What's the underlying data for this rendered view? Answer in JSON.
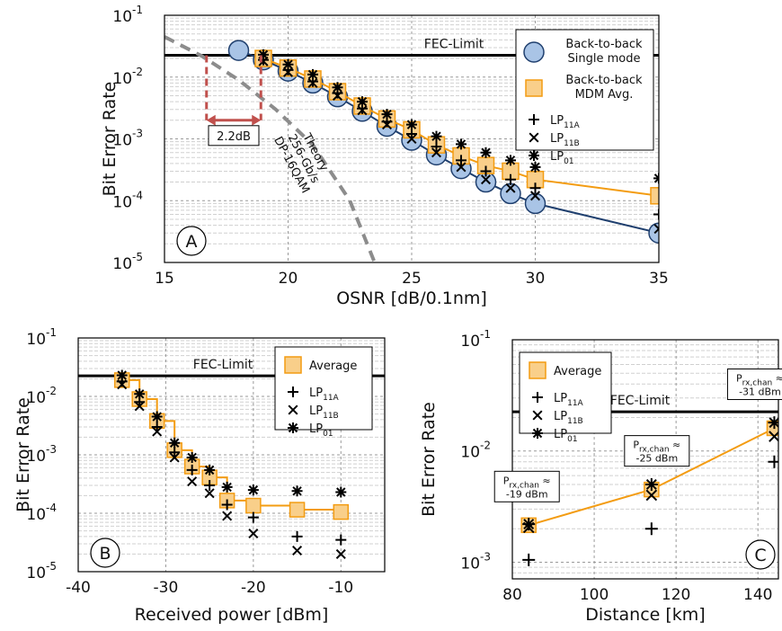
{
  "fec_label": "FEC-Limit",
  "chart_data": [
    {
      "panel": "A",
      "type": "line",
      "xlabel": "OSNR [dB/0.1nm]",
      "ylabel": "Bit Error Rate",
      "xlim": [
        15,
        35
      ],
      "ylim_log10": [
        -5,
        -1
      ],
      "x_ticks": [
        "15",
        "20",
        "25",
        "30",
        "35"
      ],
      "y_ticks": [
        {
          "base": "10",
          "exp": "-5"
        },
        {
          "base": "10",
          "exp": "-4"
        },
        {
          "base": "10",
          "exp": "-3"
        },
        {
          "base": "10",
          "exp": "-2"
        },
        {
          "base": "10",
          "exp": "-1"
        }
      ],
      "y_scale": "log",
      "grid": true,
      "fec_limit": 0.0225,
      "series": [
        {
          "name": "Back-to-back Single mode",
          "legend_lines": [
            "Back-to-back",
            "Single mode"
          ],
          "style": "circle-line",
          "color": "#1f3f6e",
          "fill": "#a9c4e6",
          "x": [
            18,
            19,
            20,
            21,
            22,
            23,
            24,
            25,
            26,
            27,
            28,
            29,
            30,
            35
          ],
          "y": [
            0.027,
            0.019,
            0.0125,
            0.008,
            0.0048,
            0.0028,
            0.0016,
            0.00095,
            0.00055,
            0.00033,
            0.0002,
            0.00013,
            9e-05,
            3e-05
          ]
        },
        {
          "name": "Back-to-back MDM Avg.",
          "legend_lines": [
            "Back-to-back",
            "MDM Avg."
          ],
          "style": "square-line",
          "color": "#f39c12",
          "fill": "#f9cf8a",
          "x": [
            19,
            20,
            21,
            22,
            23,
            24,
            25,
            26,
            27,
            28,
            29,
            30,
            35
          ],
          "y": [
            0.02,
            0.014,
            0.0093,
            0.0058,
            0.0034,
            0.0021,
            0.0014,
            0.0008,
            0.00053,
            0.00037,
            0.0003,
            0.00022,
            0.00012
          ]
        },
        {
          "name": "LP11A",
          "legend_base": "LP",
          "legend_sub": "11A",
          "style": "plus",
          "x": [
            19,
            20,
            21,
            22,
            23,
            24,
            25,
            26,
            27,
            28,
            29,
            30,
            35
          ],
          "y": [
            0.019,
            0.013,
            0.0085,
            0.0055,
            0.0031,
            0.0019,
            0.0012,
            0.00075,
            0.00045,
            0.0003,
            0.00022,
            0.00016,
            6e-05
          ]
        },
        {
          "name": "LP11B",
          "legend_base": "LP",
          "legend_sub": "11B",
          "style": "x",
          "x": [
            19,
            20,
            21,
            22,
            23,
            24,
            25,
            26,
            27,
            28,
            29,
            30,
            35
          ],
          "y": [
            0.018,
            0.012,
            0.008,
            0.005,
            0.0029,
            0.0017,
            0.001,
            0.0006,
            0.00035,
            0.00022,
            0.00016,
            0.00012,
            3.5e-05
          ]
        },
        {
          "name": "LP01",
          "legend_base": "LP",
          "legend_sub": "01",
          "style": "star",
          "x": [
            19,
            20,
            21,
            22,
            23,
            24,
            25,
            26,
            27,
            28,
            29,
            30,
            35
          ],
          "y": [
            0.023,
            0.016,
            0.011,
            0.0068,
            0.004,
            0.0025,
            0.0017,
            0.0011,
            0.00082,
            0.0006,
            0.00045,
            0.00035,
            0.00023
          ]
        },
        {
          "name": "Theory 256-Gb/s DP-16QAM",
          "label_lines": [
            "Theory",
            "256-Gb/s",
            "DP-16QAM"
          ],
          "style": "dashed-gray",
          "color": "#8c8c8c",
          "x": [
            15.0,
            16.5,
            18.0,
            19.5,
            21.0,
            22.5,
            23.5
          ],
          "y": [
            0.045,
            0.022,
            0.009,
            0.003,
            0.0008,
            0.0001,
            1e-05
          ]
        }
      ],
      "annotation": {
        "text": "2.2dB",
        "x1": 16.7,
        "x2": 18.9,
        "color": "#c0504d"
      },
      "panel_label": "A"
    },
    {
      "panel": "B",
      "type": "line",
      "xlabel": "Received power [dBm]",
      "ylabel": "Bit Error Rate",
      "xlim": [
        -40,
        -5
      ],
      "ylim_log10": [
        -5,
        -1
      ],
      "x_ticks": [
        "-40",
        "-30",
        "-20",
        "-10"
      ],
      "y_ticks": [
        {
          "base": "10",
          "exp": "-5"
        },
        {
          "base": "10",
          "exp": "-4"
        },
        {
          "base": "10",
          "exp": "-3"
        },
        {
          "base": "10",
          "exp": "-2"
        },
        {
          "base": "10",
          "exp": "-1"
        }
      ],
      "y_scale": "log",
      "grid": true,
      "fec_limit": 0.0225,
      "series": [
        {
          "name": "Average",
          "style": "square-step",
          "color": "#f39c12",
          "fill": "#f9cf8a",
          "x": [
            -35,
            -33,
            -31,
            -29,
            -27,
            -25,
            -23,
            -20,
            -15,
            -10
          ],
          "y": [
            0.019,
            0.009,
            0.0038,
            0.0012,
            0.00063,
            0.00041,
            0.000165,
            0.000135,
            0.000115,
            0.000105
          ]
        },
        {
          "name": "LP11A",
          "legend_base": "LP",
          "legend_sub": "11A",
          "style": "plus",
          "x": [
            -35,
            -33,
            -31,
            -29,
            -27,
            -25,
            -23,
            -20,
            -15,
            -10
          ],
          "y": [
            0.018,
            0.008,
            0.003,
            0.0011,
            0.00055,
            0.0003,
            0.00014,
            8.5e-05,
            4e-05,
            3.5e-05
          ]
        },
        {
          "name": "LP11B",
          "legend_base": "LP",
          "legend_sub": "11B",
          "style": "x",
          "x": [
            -35,
            -33,
            -31,
            -29,
            -27,
            -25,
            -23,
            -20,
            -15,
            -10
          ],
          "y": [
            0.016,
            0.0068,
            0.0025,
            0.0009,
            0.00035,
            0.00022,
            9e-05,
            4.5e-05,
            2.3e-05,
            2e-05
          ]
        },
        {
          "name": "LP01",
          "legend_base": "LP",
          "legend_sub": "01",
          "style": "star",
          "x": [
            -35,
            -33,
            -31,
            -29,
            -27,
            -25,
            -23,
            -20,
            -15,
            -10
          ],
          "y": [
            0.023,
            0.011,
            0.0045,
            0.0016,
            0.0009,
            0.00055,
            0.00028,
            0.00025,
            0.00024,
            0.00023
          ]
        }
      ],
      "panel_label": "B"
    },
    {
      "panel": "C",
      "type": "line",
      "xlabel": "Distance [km]",
      "ylabel": "Bit Error Rate",
      "xlim": [
        80,
        145
      ],
      "ylim_log10": [
        -3.15,
        -1
      ],
      "x_ticks": [
        "80",
        "100",
        "120",
        "140"
      ],
      "y_ticks": [
        {
          "base": "10",
          "exp": "-3"
        },
        {
          "base": "10",
          "exp": "-2"
        },
        {
          "base": "10",
          "exp": "-1"
        }
      ],
      "y_scale": "log",
      "grid": true,
      "fec_limit": 0.0225,
      "series": [
        {
          "name": "Average",
          "style": "square-line",
          "color": "#f39c12",
          "fill": "#f9cf8a",
          "x": [
            84,
            114,
            144
          ],
          "y": [
            0.00215,
            0.0045,
            0.016
          ]
        },
        {
          "name": "LP11A",
          "legend_base": "LP",
          "legend_sub": "11A",
          "style": "plus",
          "x": [
            84,
            114,
            144
          ],
          "y": [
            0.00105,
            0.002,
            0.008
          ]
        },
        {
          "name": "LP11B",
          "legend_base": "LP",
          "legend_sub": "11B",
          "style": "x",
          "x": [
            84,
            114,
            144
          ],
          "y": [
            0.00205,
            0.004,
            0.0135
          ]
        },
        {
          "name": "LP01",
          "legend_base": "LP",
          "legend_sub": "01",
          "style": "star",
          "x": [
            84,
            114,
            144
          ],
          "y": [
            0.0022,
            0.005,
            0.018
          ]
        }
      ],
      "power_boxes": [
        {
          "base": "P",
          "sub": "rx,chan",
          "suffix": " ≈",
          "value": "-19 dBm",
          "x": 84
        },
        {
          "base": "P",
          "sub": "rx,chan",
          "suffix": " ≈",
          "value": "-25 dBm",
          "x": 114
        },
        {
          "base": "P",
          "sub": "rx,chan",
          "suffix": " ≈",
          "value": "-31 dBm",
          "x": 144
        }
      ],
      "panel_label": "C"
    }
  ]
}
